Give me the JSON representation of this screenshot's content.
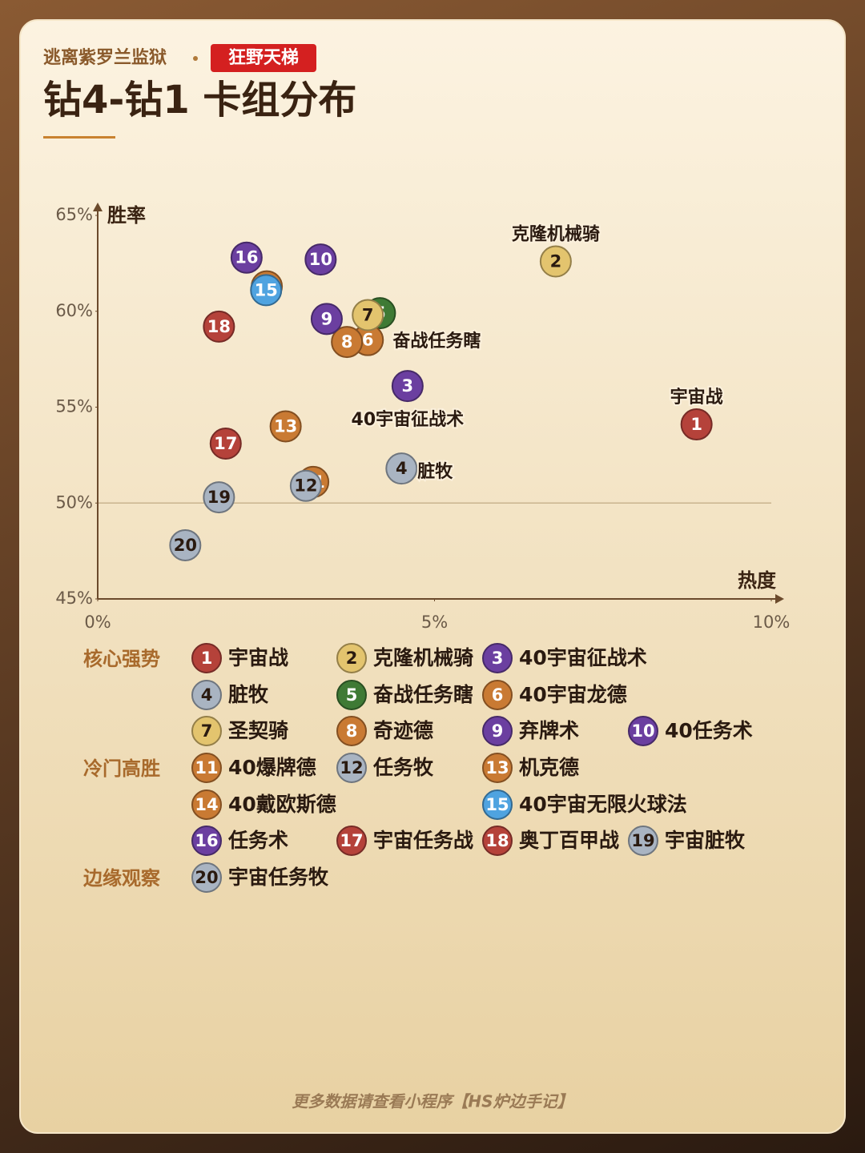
{
  "header": {
    "subtitle": "逃离紫罗兰监狱",
    "badge": "狂野天梯",
    "title": "钻4-钻1 卡组分布"
  },
  "chart_data": {
    "type": "scatter",
    "x_label": "热度",
    "y_label": "胜率",
    "xlim": [
      0,
      10
    ],
    "ylim": [
      45,
      65
    ],
    "xticks": [
      {
        "value": 0,
        "label": "0%"
      },
      {
        "value": 5,
        "label": "5%"
      },
      {
        "value": 10,
        "label": "10%"
      }
    ],
    "yticks": [
      {
        "value": 45,
        "label": "45%"
      },
      {
        "value": 50,
        "label": "50%"
      },
      {
        "value": 55,
        "label": "55%"
      },
      {
        "value": 60,
        "label": "60%"
      },
      {
        "value": 65,
        "label": "65%"
      }
    ],
    "hline": 50,
    "groups": [
      {
        "label": "核心强势",
        "points": [
          {
            "id": 1,
            "name": "宇宙战",
            "color": "#b5423a",
            "x": 8.89,
            "y": 54.1,
            "annotated": true
          },
          {
            "id": 2,
            "name": "克隆机械骑",
            "color": "#e3c46e",
            "x": 6.8,
            "y": 62.6,
            "annotated": true
          },
          {
            "id": 3,
            "name": "40宇宙征战术",
            "color": "#6b3fa0",
            "x": 4.6,
            "y": 56.1,
            "annotated": true
          },
          {
            "id": 4,
            "name": "脏牧",
            "color": "#a9b4c2",
            "x": 4.51,
            "y": 51.8,
            "annotated": true
          },
          {
            "id": 5,
            "name": "奋战任务瞎",
            "color": "#3f7a35",
            "x": 4.19,
            "y": 59.9,
            "annotated": true
          },
          {
            "id": 6,
            "name": "40宇宙龙德",
            "color": "#c97a33",
            "x": 4.01,
            "y": 58.5
          },
          {
            "id": 7,
            "name": "圣契骑",
            "color": "#e3c46e",
            "x": 4.01,
            "y": 59.8
          },
          {
            "id": 8,
            "name": "奇迹德",
            "color": "#c97a33",
            "x": 3.7,
            "y": 58.4
          },
          {
            "id": 9,
            "name": "弃牌术",
            "color": "#6b3fa0",
            "x": 3.4,
            "y": 59.6
          },
          {
            "id": 10,
            "name": "40任务术",
            "color": "#6b3fa0",
            "x": 3.31,
            "y": 62.7
          }
        ]
      },
      {
        "label": "冷门高胜",
        "points": [
          {
            "id": 11,
            "name": "40爆牌德",
            "color": "#c97a33",
            "x": 3.2,
            "y": 51.1
          },
          {
            "id": 12,
            "name": "任务牧",
            "color": "#a9b4c2",
            "x": 3.09,
            "y": 50.9
          },
          {
            "id": 13,
            "name": "机克德",
            "color": "#c97a33",
            "x": 2.79,
            "y": 54.0
          },
          {
            "id": 14,
            "name": "40戴欧斯德",
            "color": "#c97a33",
            "x": 2.51,
            "y": 61.3
          },
          {
            "id": 15,
            "name": "40宇宙无限火球法",
            "color": "#4fa3e0",
            "x": 2.5,
            "y": 61.1
          },
          {
            "id": 16,
            "name": "任务术",
            "color": "#6b3fa0",
            "x": 2.21,
            "y": 62.8
          },
          {
            "id": 17,
            "name": "宇宙任务战",
            "color": "#b5423a",
            "x": 1.9,
            "y": 53.1
          },
          {
            "id": 18,
            "name": "奥丁百甲战",
            "color": "#b5423a",
            "x": 1.8,
            "y": 59.2
          },
          {
            "id": 19,
            "name": "宇宙脏牧",
            "color": "#a9b4c2",
            "x": 1.8,
            "y": 50.3
          }
        ]
      },
      {
        "label": "边缘观察",
        "points": [
          {
            "id": 20,
            "name": "宇宙任务牧",
            "color": "#a9b4c2",
            "x": 1.3,
            "y": 47.8
          }
        ]
      }
    ]
  },
  "footer": "更多数据请查看小程序【HS炉边手记】"
}
